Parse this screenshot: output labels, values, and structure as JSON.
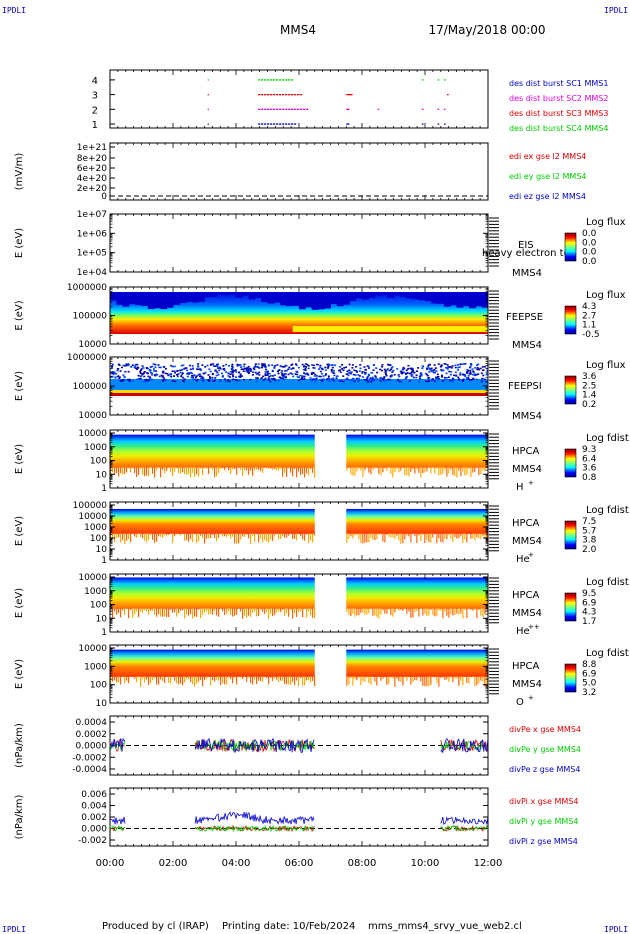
{
  "header": {
    "corner_left_top": "IPDLI",
    "corner_right_top": "IPDLI",
    "corner_left_bottom": "IPDLI",
    "corner_right_bottom": "IPDLI",
    "title": "MMS4",
    "date": "17/May/2018 00:00"
  },
  "footer": {
    "produced": "Produced by cl (IRAP)",
    "printing": "Printing date: 10/Feb/2024",
    "file": "mms_mms4_srvy_vue_web2.cl"
  },
  "colors": {
    "red": "#dd0000",
    "green": "#00cc00",
    "blue": "#0000cc",
    "magenta": "#dd00dd"
  },
  "chart_data": {
    "type": "multi-panel time series / spectrogram",
    "x_ticks": [
      "00:00",
      "02:00",
      "04:00",
      "06:00",
      "08:00",
      "10:00",
      "12:00"
    ],
    "xlim": [
      "00:00",
      "12:00"
    ],
    "panels": [
      {
        "id": "burst",
        "type": "scatter",
        "y_ticks": [
          "1",
          "2",
          "3",
          "4"
        ],
        "legend": [
          {
            "label": "des dist burst SC1 MMS1",
            "color": "#0000cc"
          },
          {
            "label": "des dist burst SC2 MMS2",
            "color": "#dd00dd"
          },
          {
            "label": "des dist burst SC3 MMS3",
            "color": "#dd0000"
          },
          {
            "label": "des dist burst SC4 MMS4",
            "color": "#00cc00"
          }
        ],
        "series": [
          {
            "level": 4,
            "color": "#00cc00",
            "intervals_hours": [
              [
                3.1,
                3.12
              ],
              [
                4.7,
                5.8
              ],
              [
                9.9,
                9.95
              ],
              [
                10.4,
                10.45
              ],
              [
                10.6,
                10.65
              ]
            ]
          },
          {
            "level": 3,
            "color": "#dd0000",
            "intervals_hours": [
              [
                3.1,
                3.12
              ],
              [
                4.7,
                6.1
              ],
              [
                7.5,
                7.7
              ],
              [
                10.7,
                10.75
              ]
            ]
          },
          {
            "level": 2,
            "color": "#dd00dd",
            "intervals_hours": [
              [
                3.1,
                3.12
              ],
              [
                4.7,
                6.3
              ],
              [
                7.5,
                7.6
              ],
              [
                8.5,
                8.55
              ],
              [
                9.9,
                9.95
              ],
              [
                10.4,
                10.45
              ],
              [
                10.6,
                10.65
              ]
            ]
          },
          {
            "level": 1,
            "color": "#0000cc",
            "intervals_hours": [
              [
                3.1,
                3.12
              ],
              [
                4.7,
                5.9
              ],
              [
                7.5,
                7.6
              ],
              [
                9.9,
                9.95
              ],
              [
                10.4,
                10.45
              ],
              [
                10.6,
                10.65
              ]
            ]
          }
        ]
      },
      {
        "id": "edi",
        "type": "line",
        "ylabel": "(mV/m)",
        "y_ticks": [
          "1e+21",
          "8e+20",
          "6e+20",
          "4e+20",
          "2e+20",
          "0"
        ],
        "legend": [
          {
            "label": "edi ex gse l2 MMS4",
            "color": "#dd0000"
          },
          {
            "label": "edi ey gse l2 MMS4",
            "color": "#00cc00"
          },
          {
            "label": "edi ez gse l2 MMS4",
            "color": "#0000cc"
          }
        ]
      },
      {
        "id": "eis",
        "type": "heatmap",
        "ylabel": "E (eV)",
        "y_ticks": [
          "1e+07",
          "1e+06",
          "1e+05",
          "1e+04"
        ],
        "instrument": "EIS",
        "overlay": "heavy electron to",
        "spacecraft": "MMS4",
        "cbar_title": "Log flux",
        "cbar_ticks": [
          "0.0",
          "0.0",
          "0.0",
          "0.0"
        ]
      },
      {
        "id": "feepse",
        "type": "heatmap",
        "ylabel": "E (eV)",
        "y_ticks": [
          "1000000",
          "100000",
          "10000"
        ],
        "instrument": "FEEPSE",
        "spacecraft": "MMS4",
        "cbar_title": "Log flux",
        "cbar_ticks": [
          "4.3",
          "2.7",
          "1.1",
          "-0.5"
        ]
      },
      {
        "id": "feepsi",
        "type": "heatmap",
        "ylabel": "E (eV)",
        "y_ticks": [
          "1000000",
          "100000",
          "10000"
        ],
        "instrument": "FEEPSI",
        "spacecraft": "MMS4",
        "cbar_title": "Log flux",
        "cbar_ticks": [
          "3.6",
          "2.5",
          "1.4",
          "0.2"
        ]
      },
      {
        "id": "hpca_h",
        "type": "heatmap",
        "ylabel": "E (eV)",
        "y_ticks": [
          "10000",
          "1000",
          "100",
          "10",
          "1"
        ],
        "instrument": "HPCA",
        "spacecraft": "MMS4",
        "species": "H",
        "charge": "+",
        "cbar_title": "Log fdist",
        "cbar_ticks": [
          "9.3",
          "6.4",
          "3.6",
          "0.8"
        ],
        "data_gaps_hours": [
          [
            6.5,
            7.5
          ]
        ]
      },
      {
        "id": "hpca_he",
        "type": "heatmap",
        "ylabel": "E (eV)",
        "y_ticks": [
          "100000",
          "10000",
          "1000",
          "100",
          "10",
          "1"
        ],
        "instrument": "HPCA",
        "spacecraft": "MMS4",
        "species": "He",
        "charge": "+",
        "cbar_title": "Log fdist",
        "cbar_ticks": [
          "7.5",
          "5.7",
          "3.8",
          "2.0"
        ],
        "data_gaps_hours": [
          [
            6.5,
            7.5
          ]
        ]
      },
      {
        "id": "hpca_hepp",
        "type": "heatmap",
        "ylabel": "E (eV)",
        "y_ticks": [
          "10000",
          "1000",
          "100",
          "10",
          "1"
        ],
        "instrument": "HPCA",
        "spacecraft": "MMS4",
        "species": "He",
        "charge": "++",
        "cbar_title": "Log fdist",
        "cbar_ticks": [
          "9.5",
          "6.9",
          "4.3",
          "1.7"
        ],
        "data_gaps_hours": [
          [
            6.5,
            7.5
          ]
        ]
      },
      {
        "id": "hpca_o",
        "type": "heatmap",
        "ylabel": "E (eV)",
        "y_ticks": [
          "10000",
          "1000",
          "100",
          "10"
        ],
        "instrument": "HPCA",
        "spacecraft": "MMS4",
        "species": "O",
        "charge": "+",
        "cbar_title": "Log fdist",
        "cbar_ticks": [
          "8.8",
          "6.9",
          "5.0",
          "3.2"
        ],
        "data_gaps_hours": [
          [
            6.5,
            7.5
          ]
        ]
      },
      {
        "id": "divpe",
        "type": "line",
        "ylabel": "(nPa/km)",
        "y_ticks": [
          "0.0004",
          "0.0002",
          "0.0000",
          "-0.0002",
          "-0.0004"
        ],
        "ylim": [
          -0.0005,
          0.0005
        ],
        "legend": [
          {
            "label": "divPe x gse MMS4",
            "color": "#dd0000"
          },
          {
            "label": "divPe y gse MMS4",
            "color": "#00cc00"
          },
          {
            "label": "divPe z gse MMS4",
            "color": "#0000cc"
          }
        ],
        "data_intervals_hours": [
          [
            0.0,
            0.5
          ],
          [
            2.7,
            6.5
          ],
          [
            10.5,
            12.0
          ]
        ]
      },
      {
        "id": "divpi",
        "type": "line",
        "ylabel": "(nPa/km)",
        "y_ticks": [
          "0.006",
          "0.004",
          "0.002",
          "0.000",
          "-0.002"
        ],
        "ylim": [
          -0.003,
          0.007
        ],
        "legend": [
          {
            "label": "divPi x gse MMS4",
            "color": "#dd0000"
          },
          {
            "label": "divPi y gse MMS4",
            "color": "#00cc00"
          },
          {
            "label": "divPi z gse MMS4",
            "color": "#0000cc"
          }
        ],
        "data_intervals_hours": [
          [
            0.0,
            0.5
          ],
          [
            2.7,
            6.5
          ],
          [
            10.5,
            12.0
          ]
        ]
      }
    ]
  }
}
